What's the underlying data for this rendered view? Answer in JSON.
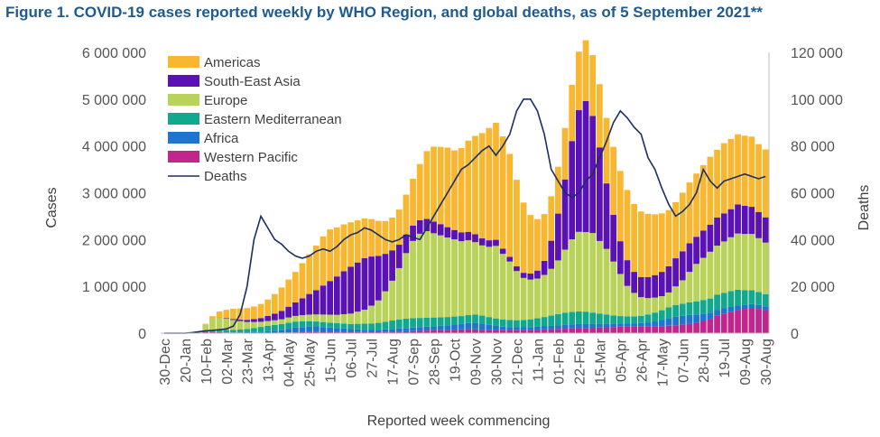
{
  "figure": {
    "title": "Figure 1. COVID-19 cases reported weekly by WHO Region, and global deaths, as of 5 September 2021**"
  },
  "chart_data": {
    "type": "bar",
    "stacked": true,
    "title": "Figure 1. COVID-19 cases reported weekly by WHO Region, and global deaths, as of 5 September 2021**",
    "xlabel": "Reported week commencing",
    "ylabel": "Cases",
    "y2label": "Deaths",
    "ylim": [
      0,
      6000000
    ],
    "y2lim": [
      0,
      120000
    ],
    "y_ticks": [
      "0",
      "1 000 000",
      "2 000 000",
      "3 000 000",
      "4 000 000",
      "5 000 000",
      "6 000 000"
    ],
    "y2_ticks": [
      "0",
      "20 000",
      "40 000",
      "60 000",
      "80 000",
      "100 000",
      "120 000"
    ],
    "x_tick_labels": [
      "30-Dec",
      "20-Jan",
      "10-Feb",
      "02-Mar",
      "23-Mar",
      "13-Apr",
      "04-May",
      "25-May",
      "15-Jun",
      "06-Jul",
      "27-Jul",
      "17-Aug",
      "07-Sep",
      "28-Sep",
      "19-Oct",
      "09-Nov",
      "30-Nov",
      "21-Dec",
      "11-Jan",
      "01-Feb",
      "22-Feb",
      "15-Mar",
      "05-Apr",
      "26-Apr",
      "17-May",
      "07-Jun",
      "28-Jun",
      "19-Jul",
      "09-Aug",
      "30-Aug"
    ],
    "grid": false,
    "legend_position": "top-left",
    "num_weeks": 88,
    "series": [
      {
        "name": "Western Pacific",
        "color": "#c1268d",
        "values": [
          0,
          0,
          1000,
          3000,
          6000,
          10000,
          20000,
          25000,
          20000,
          15000,
          12000,
          10000,
          8000,
          7000,
          8000,
          9000,
          10000,
          12000,
          15000,
          18000,
          20000,
          22000,
          25000,
          28000,
          30000,
          32000,
          30000,
          28000,
          25000,
          22000,
          20000,
          20000,
          25000,
          30000,
          35000,
          40000,
          45000,
          50000,
          55000,
          60000,
          65000,
          70000,
          75000,
          80000,
          85000,
          80000,
          75000,
          70000,
          65000,
          60000,
          60000,
          62000,
          65000,
          70000,
          75000,
          80000,
          85000,
          90000,
          95000,
          100000,
          105000,
          110000,
          115000,
          120000,
          125000,
          130000,
          140000,
          150000,
          150000,
          150000,
          150000,
          150000,
          150000,
          160000,
          170000,
          180000,
          200000,
          220000,
          260000,
          300000,
          380000,
          420000,
          460000,
          500000,
          520000,
          540000,
          520000,
          500000
        ]
      },
      {
        "name": "Africa",
        "color": "#1f74d2",
        "values": [
          0,
          0,
          0,
          0,
          0,
          0,
          0,
          1000,
          2000,
          3000,
          5000,
          8000,
          12000,
          18000,
          25000,
          35000,
          45000,
          60000,
          80000,
          100000,
          110000,
          115000,
          110000,
          100000,
          90000,
          80000,
          70000,
          60000,
          55000,
          50000,
          48000,
          50000,
          55000,
          60000,
          65000,
          70000,
          75000,
          80000,
          85000,
          90000,
          95000,
          100000,
          110000,
          120000,
          130000,
          140000,
          130000,
          110000,
          90000,
          80000,
          70000,
          65000,
          60000,
          60000,
          62000,
          65000,
          70000,
          75000,
          80000,
          85000,
          90000,
          90000,
          85000,
          80000,
          75000,
          70000,
          65000,
          60000,
          60000,
          65000,
          80000,
          100000,
          130000,
          160000,
          180000,
          190000,
          190000,
          180000,
          160000,
          140000,
          120000,
          110000,
          100000,
          90000,
          80000,
          80000,
          80000,
          75000
        ]
      },
      {
        "name": "Eastern Mediterranean",
        "color": "#12a88e",
        "values": [
          0,
          0,
          0,
          0,
          1000,
          5000,
          20000,
          35000,
          45000,
          50000,
          55000,
          60000,
          70000,
          85000,
          100000,
          115000,
          120000,
          125000,
          130000,
          130000,
          125000,
          120000,
          115000,
          110000,
          105000,
          100000,
          105000,
          110000,
          120000,
          130000,
          140000,
          150000,
          165000,
          180000,
          190000,
          200000,
          200000,
          195000,
          190000,
          185000,
          180000,
          175000,
          170000,
          165000,
          170000,
          175000,
          170000,
          165000,
          160000,
          155000,
          150000,
          150000,
          155000,
          165000,
          180000,
          200000,
          220000,
          240000,
          260000,
          270000,
          270000,
          260000,
          240000,
          220000,
          200000,
          180000,
          160000,
          150000,
          150000,
          155000,
          170000,
          190000,
          210000,
          230000,
          250000,
          260000,
          270000,
          280000,
          290000,
          300000,
          320000,
          330000,
          340000,
          340000,
          320000,
          300000,
          280000,
          260000
        ]
      },
      {
        "name": "Europe",
        "color": "#b8d25a",
        "values": [
          0,
          0,
          0,
          0,
          2000,
          20000,
          150000,
          250000,
          270000,
          240000,
          210000,
          180000,
          150000,
          130000,
          110000,
          100000,
          100000,
          100000,
          110000,
          120000,
          130000,
          140000,
          150000,
          160000,
          170000,
          180000,
          200000,
          220000,
          260000,
          300000,
          380000,
          480000,
          650000,
          850000,
          1100000,
          1400000,
          1650000,
          1800000,
          1850000,
          1800000,
          1750000,
          1700000,
          1650000,
          1600000,
          1600000,
          1550000,
          1500000,
          1500000,
          1550000,
          1400000,
          1250000,
          1050000,
          900000,
          850000,
          850000,
          900000,
          1000000,
          1150000,
          1350000,
          1550000,
          1700000,
          1700000,
          1700000,
          1550000,
          1400000,
          1150000,
          900000,
          650000,
          500000,
          400000,
          350000,
          320000,
          300000,
          320000,
          400000,
          500000,
          650000,
          800000,
          900000,
          1000000,
          1050000,
          1100000,
          1150000,
          1200000,
          1200000,
          1200000,
          1150000,
          1100000
        ]
      },
      {
        "name": "South-East Asia",
        "color": "#5a12b4",
        "values": [
          0,
          0,
          0,
          0,
          0,
          0,
          0,
          2000,
          5000,
          10000,
          20000,
          30000,
          45000,
          60000,
          80000,
          110000,
          140000,
          180000,
          230000,
          290000,
          360000,
          440000,
          520000,
          620000,
          720000,
          820000,
          920000,
          1000000,
          1050000,
          1100000,
          1050000,
          950000,
          800000,
          650000,
          500000,
          400000,
          330000,
          290000,
          260000,
          250000,
          240000,
          220000,
          200000,
          190000,
          180000,
          170000,
          150000,
          140000,
          130000,
          110000,
          100000,
          100000,
          110000,
          130000,
          170000,
          300000,
          600000,
          1000000,
          1500000,
          2100000,
          2600000,
          2800000,
          2500000,
          2000000,
          1400000,
          1000000,
          700000,
          550000,
          450000,
          430000,
          450000,
          480000,
          520000,
          560000,
          600000,
          620000,
          610000,
          580000,
          580000,
          580000,
          600000,
          600000,
          600000,
          620000,
          600000,
          580000,
          560000,
          540000
        ]
      },
      {
        "name": "Americas",
        "color": "#f7b731",
        "values": [
          0,
          0,
          0,
          0,
          0,
          0,
          10000,
          50000,
          120000,
          180000,
          220000,
          240000,
          250000,
          270000,
          300000,
          350000,
          420000,
          500000,
          580000,
          650000,
          750000,
          850000,
          950000,
          1050000,
          1100000,
          1050000,
          1000000,
          950000,
          900000,
          850000,
          800000,
          750000,
          700000,
          700000,
          750000,
          850000,
          1000000,
          1200000,
          1450000,
          1600000,
          1650000,
          1700000,
          1700000,
          1800000,
          1950000,
          2100000,
          2250000,
          2400000,
          2500000,
          2400000,
          2200000,
          1850000,
          1500000,
          1250000,
          1100000,
          1000000,
          950000,
          1000000,
          1100000,
          1200000,
          1250000,
          1300000,
          1300000,
          1350000,
          1400000,
          1450000,
          1500000,
          1500000,
          1450000,
          1400000,
          1350000,
          1300000,
          1250000,
          1200000,
          1200000,
          1250000,
          1300000,
          1350000,
          1400000,
          1450000,
          1450000,
          1500000,
          1500000,
          1500000,
          1500000,
          1500000,
          1450000,
          1450000
        ]
      }
    ],
    "deaths": {
      "name": "Deaths",
      "color": "#1b2f63",
      "values": [
        0,
        0,
        0,
        0,
        200,
        600,
        1000,
        1200,
        1500,
        1800,
        3000,
        8000,
        20000,
        40000,
        50000,
        45000,
        40000,
        38000,
        35000,
        33000,
        32000,
        33000,
        35000,
        36000,
        35000,
        37000,
        40000,
        42000,
        43000,
        45000,
        44000,
        42000,
        40000,
        39000,
        40000,
        42000,
        41000,
        40000,
        45000,
        50000,
        55000,
        60000,
        65000,
        70000,
        72000,
        75000,
        78000,
        80000,
        76000,
        80000,
        85000,
        95000,
        100000,
        100000,
        95000,
        85000,
        70000,
        65000,
        60000,
        58000,
        60000,
        65000,
        68000,
        75000,
        82000,
        90000,
        95000,
        92000,
        88000,
        85000,
        75000,
        70000,
        62000,
        55000,
        50000,
        52000,
        55000,
        60000,
        70000,
        65000,
        62000,
        65000,
        66000,
        67000,
        68000,
        67000,
        66000,
        67000
      ]
    }
  }
}
